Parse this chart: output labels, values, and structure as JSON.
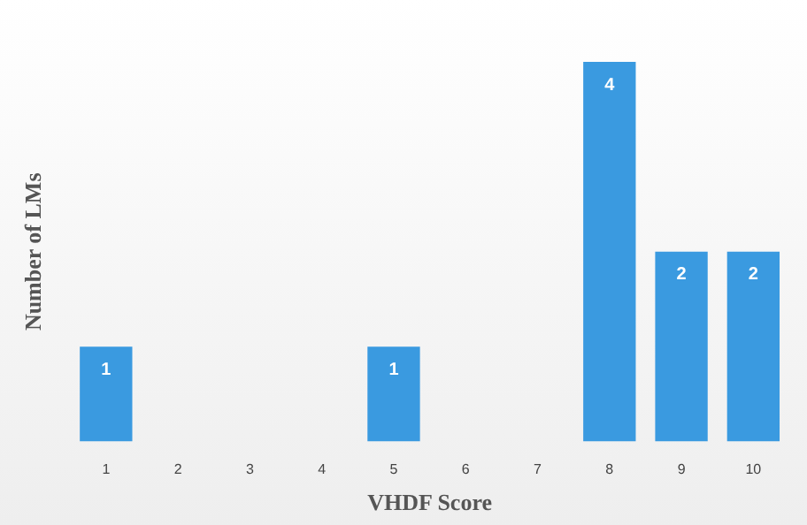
{
  "chart_data": {
    "type": "bar",
    "xlabel": "VHDF Score",
    "ylabel": "Number of LMs",
    "categories": [
      "1",
      "2",
      "3",
      "4",
      "5",
      "6",
      "7",
      "8",
      "9",
      "10"
    ],
    "values": [
      1,
      0,
      0,
      0,
      1,
      0,
      0,
      4,
      2,
      2
    ],
    "value_labels": [
      "1",
      null,
      null,
      null,
      "1",
      null,
      null,
      "4",
      "2",
      "2"
    ],
    "color": "#3a9ae0",
    "grid": false,
    "legend": false
  }
}
